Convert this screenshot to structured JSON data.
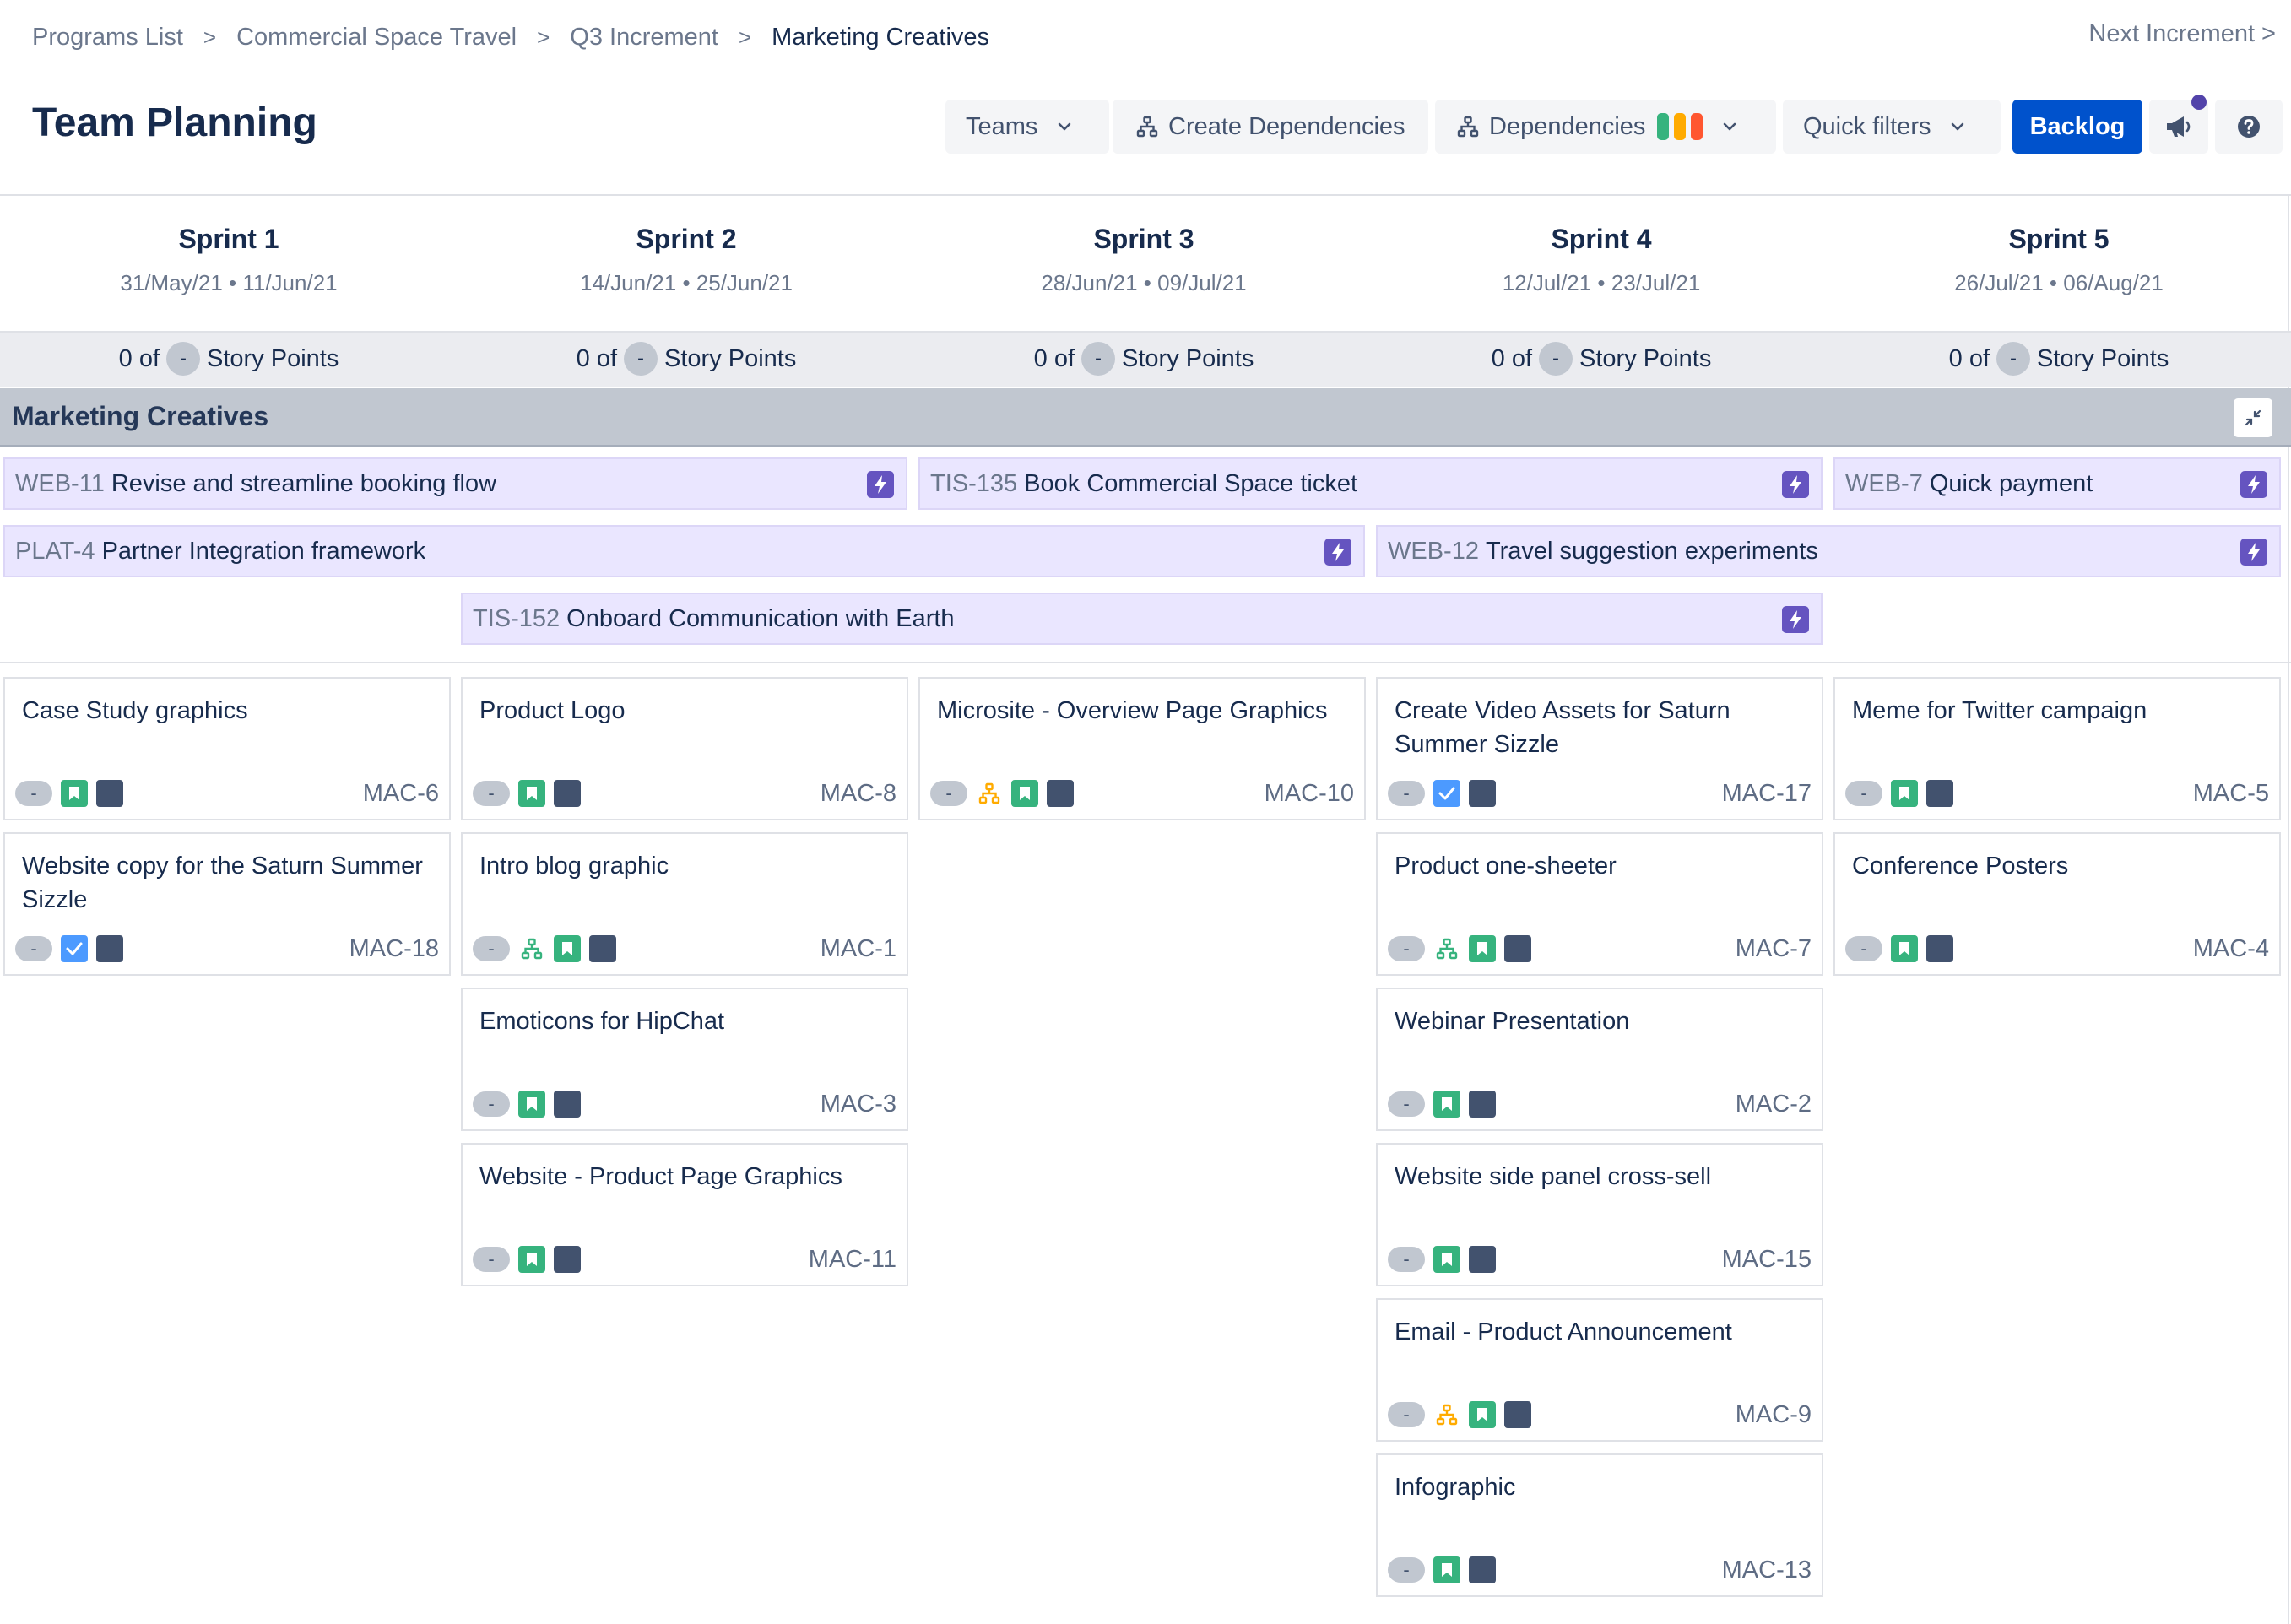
{
  "breadcrumb": {
    "items": [
      "Programs List",
      "Commercial Space Travel",
      "Q3 Increment",
      "Marketing Creatives"
    ],
    "separator": ">"
  },
  "next_increment": "Next Increment >",
  "page_title": "Team Planning",
  "toolbar": {
    "teams_label": "Teams",
    "create_dependencies_label": "Create Dependencies",
    "dependencies_label": "Dependencies",
    "quick_filters_label": "Quick filters",
    "backlog_label": "Backlog",
    "dependency_legend_colors": [
      "#36b37e",
      "#ffab00",
      "#ff5630"
    ],
    "announce_icon": "megaphone-icon",
    "help_icon": "help-icon"
  },
  "sprints": [
    {
      "name": "Sprint 1",
      "dates": "31/May/21 • 11/Jun/21",
      "points_prefix": "0 of",
      "points_value": "-",
      "points_label": "Story Points"
    },
    {
      "name": "Sprint 2",
      "dates": "14/Jun/21 • 25/Jun/21",
      "points_prefix": "0 of",
      "points_value": "-",
      "points_label": "Story Points"
    },
    {
      "name": "Sprint 3",
      "dates": "28/Jun/21 • 09/Jul/21",
      "points_prefix": "0 of",
      "points_value": "-",
      "points_label": "Story Points"
    },
    {
      "name": "Sprint 4",
      "dates": "12/Jul/21 • 23/Jul/21",
      "points_prefix": "0 of",
      "points_value": "-",
      "points_label": "Story Points"
    },
    {
      "name": "Sprint 5",
      "dates": "26/Jul/21 • 06/Aug/21",
      "points_prefix": "0 of",
      "points_value": "-",
      "points_label": "Story Points"
    }
  ],
  "team": {
    "name": "Marketing Creatives"
  },
  "features": [
    {
      "key": "WEB-11",
      "title": "Revise and streamline booking flow"
    },
    {
      "key": "TIS-135",
      "title": "Book Commercial Space ticket"
    },
    {
      "key": "WEB-7",
      "title": "Quick payment"
    },
    {
      "key": "PLAT-4",
      "title": "Partner Integration framework"
    },
    {
      "key": "WEB-12",
      "title": "Travel suggestion experiments"
    },
    {
      "key": "TIS-152",
      "title": "Onboard Communication with Earth"
    }
  ],
  "cards": [
    {
      "title": "Case Study graphics",
      "key": "MAC-6",
      "estimate": "-",
      "icons": [
        "story-icon",
        "priority-icon"
      ]
    },
    {
      "title": "Website copy for the Saturn Summer Sizzle",
      "key": "MAC-18",
      "estimate": "-",
      "icons": [
        "task-checkbox-icon",
        "priority-icon"
      ]
    },
    {
      "title": "Product Logo",
      "key": "MAC-8",
      "estimate": "-",
      "icons": [
        "story-icon",
        "priority-icon"
      ]
    },
    {
      "title": "Intro blog graphic",
      "key": "MAC-1",
      "estimate": "-",
      "icons": [
        "dependency-green-icon",
        "story-icon",
        "priority-icon"
      ]
    },
    {
      "title": "Emoticons for HipChat",
      "key": "MAC-3",
      "estimate": "-",
      "icons": [
        "story-icon",
        "priority-icon"
      ]
    },
    {
      "title": "Website - Product Page Graphics",
      "key": "MAC-11",
      "estimate": "-",
      "icons": [
        "story-icon",
        "priority-icon"
      ]
    },
    {
      "title": "Microsite - Overview Page Graphics",
      "key": "MAC-10",
      "estimate": "-",
      "icons": [
        "dependency-orange-icon",
        "story-icon",
        "priority-icon"
      ]
    },
    {
      "title": "Create Video Assets for Saturn Summer Sizzle",
      "key": "MAC-17",
      "estimate": "-",
      "icons": [
        "task-checkbox-icon",
        "priority-icon"
      ]
    },
    {
      "title": "Product one-sheeter",
      "key": "MAC-7",
      "estimate": "-",
      "icons": [
        "dependency-green-icon",
        "story-icon",
        "priority-icon"
      ]
    },
    {
      "title": "Webinar Presentation",
      "key": "MAC-2",
      "estimate": "-",
      "icons": [
        "story-icon",
        "priority-icon"
      ]
    },
    {
      "title": "Website side panel cross-sell",
      "key": "MAC-15",
      "estimate": "-",
      "icons": [
        "story-icon",
        "priority-icon"
      ]
    },
    {
      "title": "Email - Product Announcement",
      "key": "MAC-9",
      "estimate": "-",
      "icons": [
        "dependency-orange-icon",
        "story-icon",
        "priority-icon"
      ]
    },
    {
      "title": "Infographic",
      "key": "MAC-13",
      "estimate": "-",
      "icons": [
        "story-icon",
        "priority-icon"
      ]
    },
    {
      "title": "Meme for Twitter campaign",
      "key": "MAC-5",
      "estimate": "-",
      "icons": [
        "story-icon",
        "priority-icon"
      ]
    },
    {
      "title": "Conference Posters",
      "key": "MAC-4",
      "estimate": "-",
      "icons": [
        "story-icon",
        "priority-icon"
      ]
    }
  ],
  "colors": {
    "primary": "#0052cc",
    "feature_bg": "#eae6ff",
    "bolt": "#6554c0",
    "story": "#36b37e",
    "dependency_orange": "#ffab00",
    "priority": "#42526e",
    "team_band": "#c1c7d0"
  }
}
